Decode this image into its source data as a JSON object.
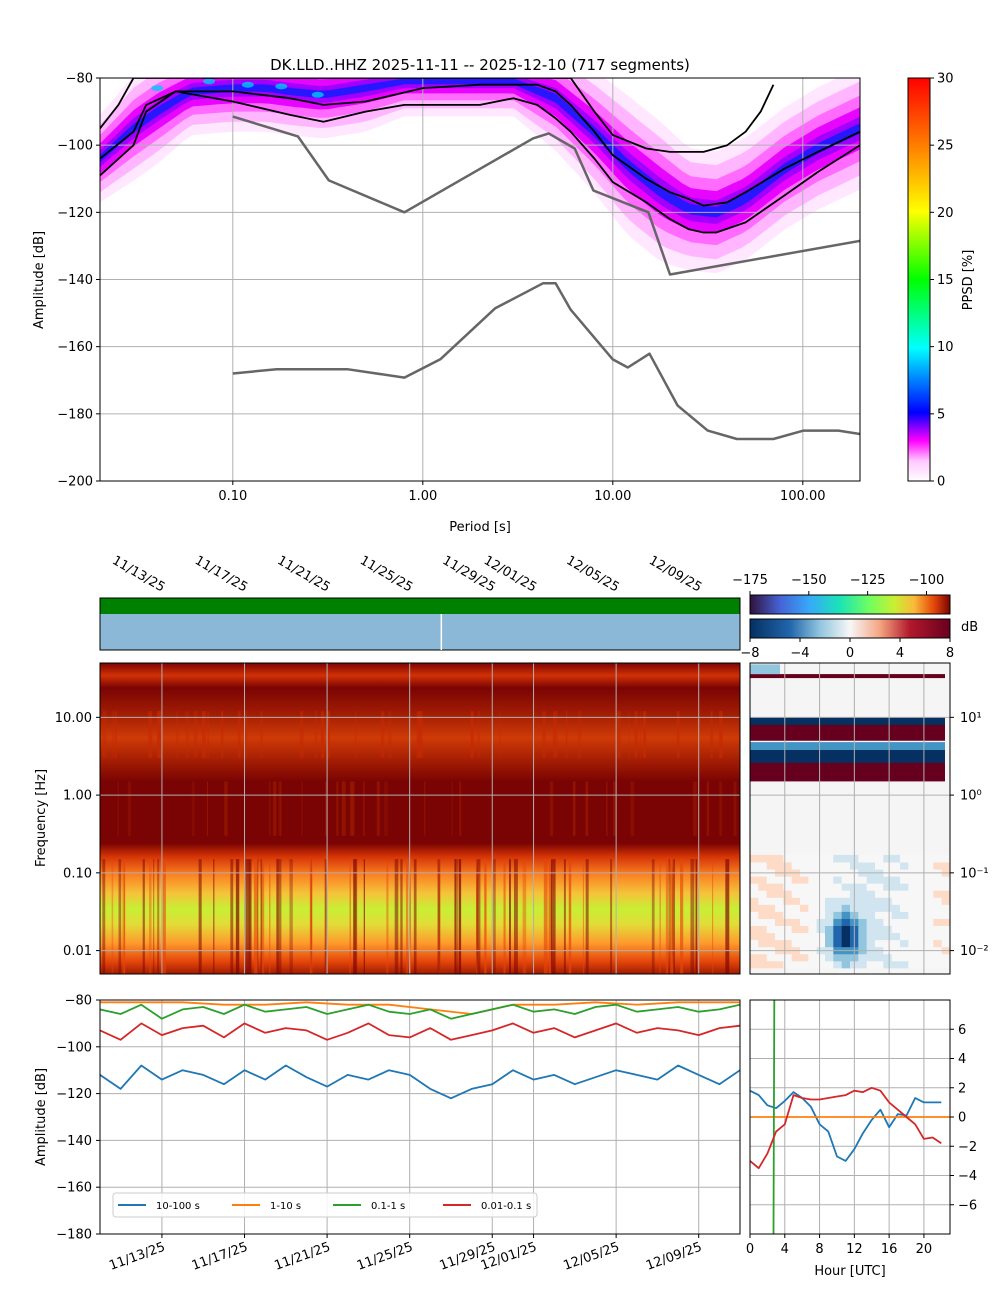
{
  "chart_data": [
    {
      "type": "heatmap",
      "panel": "ppsd",
      "title": "DK.LLD..HHZ   2025-11-11 -- 2025-12-10  (717 segments)",
      "xlabel": "Period [s]",
      "ylabel": "Amplitude [dB]",
      "xscale": "log",
      "xlim": [
        0.02,
        200
      ],
      "ylim": [
        -200,
        -80
      ],
      "xticks": [
        {
          "value": 0.1,
          "label": "0.10"
        },
        {
          "value": 1,
          "label": "1.00"
        },
        {
          "value": 10,
          "label": "10.00"
        },
        {
          "value": 100,
          "label": "100.00"
        }
      ],
      "yticks": [
        -200,
        -180,
        -160,
        -140,
        -120,
        -100,
        -80
      ],
      "grid": true,
      "colorbar": {
        "label": "PPSD [%]",
        "range": [
          0,
          30
        ],
        "ticks": [
          0,
          5,
          10,
          15,
          20,
          25,
          30
        ]
      },
      "density_band": {
        "periods": [
          0.02,
          0.03,
          0.04,
          0.06,
          0.1,
          0.15,
          0.2,
          0.3,
          0.5,
          0.8,
          1.2,
          2,
          3,
          5,
          8,
          12,
          18,
          25,
          35,
          50,
          80,
          120,
          200
        ],
        "mode_db": [
          -104,
          -95,
          -90,
          -84,
          -83,
          -83,
          -84,
          -85,
          -83,
          -81,
          -81,
          -81,
          -81,
          -86,
          -96,
          -106,
          -114,
          -119,
          -120,
          -116,
          -107,
          -101,
          -95
        ],
        "spread_db": [
          5,
          6,
          6,
          5,
          5,
          5,
          5,
          5,
          5,
          4,
          4,
          4,
          4,
          6,
          7,
          8,
          8,
          7,
          7,
          7,
          7,
          7,
          7
        ]
      },
      "series": [
        {
          "name": "",
          "role": "upper percentile",
          "color": "#000000",
          "x": [
            0.02,
            0.025,
            0.03,
            0.035,
            0.07,
            0.1,
            0.15,
            0.2,
            0.3,
            0.5,
            1,
            2,
            3,
            4,
            5,
            6,
            8,
            10,
            15,
            20,
            25,
            30,
            40,
            50,
            60,
            70
          ],
          "y": [
            -95,
            -88,
            -80,
            -80,
            -80,
            -80,
            -80,
            -80,
            -80,
            -80,
            -80,
            -80,
            -80,
            -80,
            -80,
            -80,
            -90,
            -97,
            -101,
            -102,
            -102,
            -102,
            -100,
            -96,
            -90,
            -82
          ]
        },
        {
          "name": "",
          "role": "mean",
          "color": "#000000",
          "x": [
            0.02,
            0.03,
            0.035,
            0.05,
            0.1,
            0.2,
            0.3,
            0.5,
            1,
            2,
            3,
            4,
            5,
            6,
            8,
            10,
            15,
            20,
            25,
            30,
            40,
            50,
            80,
            120,
            200
          ],
          "y": [
            -104,
            -96,
            -88,
            -84,
            -84,
            -86,
            -88,
            -87,
            -83,
            -82,
            -82,
            -82,
            -84,
            -88,
            -96,
            -103,
            -110,
            -114,
            -116,
            -118,
            -117,
            -114,
            -107,
            -102,
            -96
          ]
        },
        {
          "name": "",
          "role": "lower percentile",
          "color": "#000000",
          "x": [
            0.02,
            0.03,
            0.035,
            0.05,
            0.1,
            0.2,
            0.3,
            0.5,
            0.8,
            1,
            2,
            3,
            4,
            5,
            6,
            8,
            10,
            15,
            20,
            25,
            30,
            35,
            50,
            80,
            120,
            200
          ],
          "y": [
            -109,
            -100,
            -90,
            -84,
            -87,
            -91,
            -93,
            -90,
            -88,
            -88,
            -88,
            -86,
            -88,
            -92,
            -96,
            -104,
            -111,
            -117,
            -122,
            -125,
            -126,
            -126,
            -123,
            -115,
            -108,
            -100
          ]
        },
        {
          "name": "",
          "role": "NHNM",
          "color": "#666666",
          "x": [
            0.1,
            0.22,
            0.32,
            0.8,
            3.8,
            4.6,
            6.3,
            7.9,
            15.4,
            20,
            354.8
          ],
          "y": [
            -91.5,
            -97.4,
            -110.5,
            -120,
            -98,
            -96.5,
            -101,
            -113.5,
            -120,
            -138.5,
            -126
          ]
        },
        {
          "name": "",
          "role": "NLNM",
          "color": "#666666",
          "x": [
            0.1,
            0.17,
            0.4,
            0.8,
            1.24,
            2.4,
            4.3,
            5,
            6,
            10,
            12,
            15.6,
            21.9,
            31.6,
            45,
            70,
            101,
            154,
            200
          ],
          "y": [
            -168,
            -166.7,
            -166.7,
            -169.2,
            -163.7,
            -148.6,
            -141.1,
            -141.1,
            -149,
            -163.8,
            -166.2,
            -162.1,
            -177.5,
            -185,
            -187.5,
            -187.5,
            -185,
            -185,
            -186
          ]
        }
      ]
    },
    {
      "type": "heatmap",
      "panel": "spectrogram",
      "ylabel": "Frequency [Hz]",
      "yscale": "log",
      "ylim": [
        0.005,
        50
      ],
      "yticks": [
        {
          "value": 0.01,
          "label": "0.01"
        },
        {
          "value": 0.1,
          "label": "0.10"
        },
        {
          "value": 1,
          "label": "1.00"
        },
        {
          "value": 10,
          "label": "10.00"
        }
      ],
      "xlim": [
        "2025-11-10",
        "2025-12-11"
      ],
      "xticks": [
        "11/13/25",
        "11/17/25",
        "11/21/25",
        "11/25/25",
        "11/29/25",
        "12/01/25",
        "12/05/25",
        "12/09/25"
      ],
      "grid": true,
      "colorbar": {
        "range": [
          -175,
          -90
        ],
        "ticks": [
          -175,
          -150,
          -125,
          -100
        ]
      },
      "availability": {
        "data_bar": "full coverage",
        "gap_marker_date": "2025-11-26"
      }
    },
    {
      "type": "heatmap",
      "panel": "diurnal-deviation",
      "yscale": "log",
      "ylim": [
        0.005,
        50
      ],
      "yticks": [
        {
          "value": 0.01,
          "label": "10⁻²"
        },
        {
          "value": 0.1,
          "label": "10⁻¹"
        },
        {
          "value": 1,
          "label": "10⁰"
        },
        {
          "value": 10,
          "label": "10¹"
        }
      ],
      "colorbar": {
        "label": "dB",
        "range": [
          -8,
          8
        ],
        "ticks": [
          -8,
          -4,
          0,
          4,
          8
        ]
      }
    },
    {
      "type": "line",
      "panel": "band-amplitudes",
      "ylabel": "Amplitude [dB]",
      "ylim": [
        -180,
        -80
      ],
      "yticks": [
        -180,
        -160,
        -140,
        -120,
        -100,
        -80
      ],
      "xlim": [
        "2025-11-10",
        "2025-12-11"
      ],
      "xticks": [
        "11/13/25",
        "11/17/25",
        "11/21/25",
        "11/25/25",
        "11/29/25",
        "12/01/25",
        "12/05/25",
        "12/09/25"
      ],
      "grid": true,
      "legend": "lower-left",
      "series": [
        {
          "name": "10-100 s",
          "color": "#1f77b4",
          "x": [
            "2025-11-10",
            "2025-11-11",
            "2025-11-12",
            "2025-11-13",
            "2025-11-14",
            "2025-11-15",
            "2025-11-16",
            "2025-11-17",
            "2025-11-18",
            "2025-11-19",
            "2025-11-20",
            "2025-11-21",
            "2025-11-22",
            "2025-11-23",
            "2025-11-24",
            "2025-11-25",
            "2025-11-26",
            "2025-11-27",
            "2025-11-28",
            "2025-11-29",
            "2025-11-30",
            "2025-12-01",
            "2025-12-02",
            "2025-12-03",
            "2025-12-04",
            "2025-12-05",
            "2025-12-06",
            "2025-12-07",
            "2025-12-08",
            "2025-12-09",
            "2025-12-10",
            "2025-12-11"
          ],
          "y": [
            -112,
            -118,
            -108,
            -114,
            -110,
            -112,
            -116,
            -110,
            -114,
            -108,
            -113,
            -117,
            -112,
            -114,
            -110,
            -112,
            -118,
            -122,
            -118,
            -116,
            -110,
            -114,
            -112,
            -116,
            -113,
            -110,
            -112,
            -114,
            -108,
            -112,
            -116,
            -110
          ]
        },
        {
          "name": "1-10 s",
          "color": "#ff7f0e",
          "x": [
            "2025-11-10",
            "2025-11-12",
            "2025-11-14",
            "2025-11-16",
            "2025-11-18",
            "2025-11-20",
            "2025-11-22",
            "2025-11-24",
            "2025-11-26",
            "2025-11-28",
            "2025-11-30",
            "2025-12-02",
            "2025-12-04",
            "2025-12-06",
            "2025-12-08",
            "2025-12-10",
            "2025-12-11"
          ],
          "y": [
            -81,
            -81,
            -81,
            -82,
            -82,
            -81,
            -82,
            -82,
            -84,
            -86,
            -82,
            -82,
            -81,
            -82,
            -81,
            -81,
            -81
          ]
        },
        {
          "name": "0.1-1 s",
          "color": "#2ca02c",
          "x": [
            "2025-11-10",
            "2025-11-11",
            "2025-11-12",
            "2025-11-13",
            "2025-11-14",
            "2025-11-15",
            "2025-11-16",
            "2025-11-17",
            "2025-11-18",
            "2025-11-19",
            "2025-11-20",
            "2025-11-21",
            "2025-11-22",
            "2025-11-23",
            "2025-11-24",
            "2025-11-25",
            "2025-11-26",
            "2025-11-27",
            "2025-11-28",
            "2025-11-29",
            "2025-11-30",
            "2025-12-01",
            "2025-12-02",
            "2025-12-03",
            "2025-12-04",
            "2025-12-05",
            "2025-12-06",
            "2025-12-07",
            "2025-12-08",
            "2025-12-09",
            "2025-12-10",
            "2025-12-11"
          ],
          "y": [
            -84,
            -86,
            -82,
            -88,
            -84,
            -83,
            -86,
            -82,
            -85,
            -84,
            -83,
            -86,
            -84,
            -82,
            -85,
            -86,
            -84,
            -88,
            -86,
            -84,
            -82,
            -85,
            -84,
            -86,
            -83,
            -82,
            -85,
            -84,
            -83,
            -85,
            -84,
            -82
          ]
        },
        {
          "name": "0.01-0.1 s",
          "color": "#d62728",
          "x": [
            "2025-11-10",
            "2025-11-11",
            "2025-11-12",
            "2025-11-13",
            "2025-11-14",
            "2025-11-15",
            "2025-11-16",
            "2025-11-17",
            "2025-11-18",
            "2025-11-19",
            "2025-11-20",
            "2025-11-21",
            "2025-11-22",
            "2025-11-23",
            "2025-11-24",
            "2025-11-25",
            "2025-11-26",
            "2025-11-27",
            "2025-11-28",
            "2025-11-29",
            "2025-11-30",
            "2025-12-01",
            "2025-12-02",
            "2025-12-03",
            "2025-12-04",
            "2025-12-05",
            "2025-12-06",
            "2025-12-07",
            "2025-12-08",
            "2025-12-09",
            "2025-12-10",
            "2025-12-11"
          ],
          "y": [
            -93,
            -97,
            -90,
            -95,
            -92,
            -91,
            -96,
            -90,
            -94,
            -92,
            -93,
            -97,
            -94,
            -90,
            -95,
            -96,
            -92,
            -97,
            -95,
            -93,
            -90,
            -94,
            -92,
            -96,
            -93,
            -90,
            -94,
            -92,
            -93,
            -95,
            -92,
            -91
          ]
        }
      ]
    },
    {
      "type": "line",
      "panel": "diurnal-bands",
      "xlabel": "Hour [UTC]",
      "xlim": [
        0,
        23
      ],
      "xticks": [
        0,
        4,
        8,
        12,
        16,
        20
      ],
      "ylim": [
        -8,
        8
      ],
      "yticks": [
        -6,
        -4,
        -2,
        0,
        2,
        4,
        6
      ],
      "grid": true,
      "series": [
        {
          "name": "10-100 s",
          "color": "#1f77b4",
          "x": [
            0,
            1,
            2,
            3,
            4,
            5,
            6,
            7,
            8,
            9,
            10,
            11,
            12,
            13,
            14,
            15,
            16,
            17,
            18,
            19,
            20,
            21,
            22
          ],
          "y": [
            1.8,
            1.5,
            0.8,
            0.6,
            1.1,
            1.7,
            1.3,
            0.7,
            -0.5,
            -1.0,
            -2.7,
            -3.0,
            -2.2,
            -1.1,
            -0.2,
            0.5,
            -0.7,
            0.2,
            0.1,
            1.3,
            1.0,
            1.0,
            1.0
          ]
        },
        {
          "name": "1-10 s",
          "color": "#ff7f0e",
          "x": [
            0,
            23
          ],
          "y": [
            0,
            0
          ]
        },
        {
          "name": "0.1-1 s",
          "color": "#2ca02c",
          "x": [
            2.7,
            2.8
          ],
          "y": [
            -8,
            8
          ]
        },
        {
          "name": "0.01-0.1 s",
          "color": "#d62728",
          "x": [
            0,
            1,
            2,
            3,
            4,
            5,
            6,
            7,
            8,
            9,
            10,
            11,
            12,
            13,
            14,
            15,
            16,
            17,
            18,
            19,
            20,
            21,
            22
          ],
          "y": [
            -3.0,
            -3.5,
            -2.5,
            -1.0,
            -0.5,
            1.5,
            1.3,
            1.2,
            1.2,
            1.3,
            1.4,
            1.5,
            1.8,
            1.7,
            2.0,
            1.8,
            1.0,
            0.5,
            0.0,
            -0.5,
            -1.5,
            -1.4,
            -1.8
          ]
        }
      ]
    }
  ]
}
